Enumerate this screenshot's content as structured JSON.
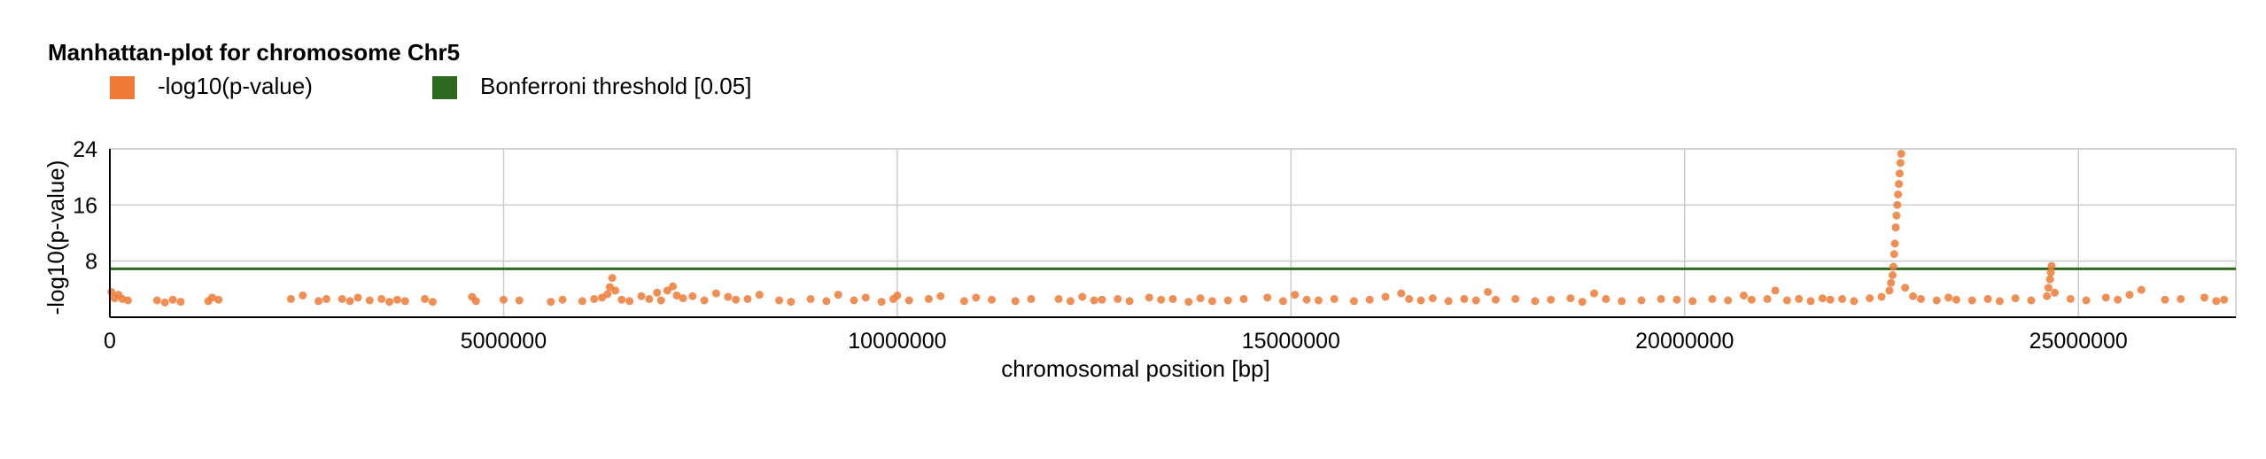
{
  "chart_data": {
    "type": "scatter",
    "title": "Manhattan-plot for chromosome Chr5",
    "xlabel": "chromosomal position [bp]",
    "ylabel": "-log10(p-value)",
    "xlim": [
      0,
      27000000
    ],
    "ylim": [
      0,
      24
    ],
    "x_ticks": [
      0,
      5000000,
      10000000,
      15000000,
      20000000,
      25000000
    ],
    "x_tick_labels": [
      "0",
      "5000000",
      "10000000",
      "15000000",
      "20000000",
      "25000000"
    ],
    "y_ticks": [
      8,
      16,
      24
    ],
    "y_tick_labels": [
      "8",
      "16",
      "24"
    ],
    "grid": true,
    "legend_placement": "top-left",
    "series": [
      {
        "name": "-log10(p-value)",
        "color": "#ef7a35",
        "points": [
          [
            20000,
            3.6
          ],
          [
            60000,
            2.7
          ],
          [
            110000,
            3.2
          ],
          [
            160000,
            2.6
          ],
          [
            230000,
            2.4
          ],
          [
            600000,
            2.4
          ],
          [
            700000,
            2.1
          ],
          [
            800000,
            2.5
          ],
          [
            900000,
            2.2
          ],
          [
            1250000,
            2.3
          ],
          [
            1300000,
            2.8
          ],
          [
            1380000,
            2.5
          ],
          [
            2300000,
            2.6
          ],
          [
            2450000,
            3.1
          ],
          [
            2650000,
            2.3
          ],
          [
            2750000,
            2.6
          ],
          [
            2950000,
            2.6
          ],
          [
            3050000,
            2.3
          ],
          [
            3150000,
            2.8
          ],
          [
            3300000,
            2.4
          ],
          [
            3450000,
            2.6
          ],
          [
            3550000,
            2.2
          ],
          [
            3650000,
            2.5
          ],
          [
            3750000,
            2.3
          ],
          [
            4000000,
            2.6
          ],
          [
            4100000,
            2.2
          ],
          [
            4600000,
            2.9
          ],
          [
            4650000,
            2.3
          ],
          [
            5000000,
            2.5
          ],
          [
            5200000,
            2.4
          ],
          [
            5600000,
            2.2
          ],
          [
            5750000,
            2.5
          ],
          [
            6000000,
            2.3
          ],
          [
            6150000,
            2.6
          ],
          [
            6250000,
            2.8
          ],
          [
            6320000,
            3.3
          ],
          [
            6350000,
            4.3
          ],
          [
            6380000,
            5.6
          ],
          [
            6420000,
            3.8
          ],
          [
            6500000,
            2.5
          ],
          [
            6600000,
            2.3
          ],
          [
            6750000,
            3.0
          ],
          [
            6850000,
            2.6
          ],
          [
            6950000,
            3.5
          ],
          [
            7000000,
            2.4
          ],
          [
            7080000,
            3.8
          ],
          [
            7150000,
            4.4
          ],
          [
            7200000,
            3.1
          ],
          [
            7280000,
            2.7
          ],
          [
            7400000,
            3.0
          ],
          [
            7550000,
            2.4
          ],
          [
            7700000,
            3.4
          ],
          [
            7850000,
            2.9
          ],
          [
            7950000,
            2.5
          ],
          [
            8100000,
            2.6
          ],
          [
            8250000,
            3.2
          ],
          [
            8500000,
            2.4
          ],
          [
            8650000,
            2.2
          ],
          [
            8900000,
            2.6
          ],
          [
            9100000,
            2.3
          ],
          [
            9250000,
            3.2
          ],
          [
            9450000,
            2.4
          ],
          [
            9600000,
            2.8
          ],
          [
            9800000,
            2.2
          ],
          [
            9950000,
            2.6
          ],
          [
            10000000,
            3.1
          ],
          [
            10150000,
            2.4
          ],
          [
            10400000,
            2.6
          ],
          [
            10550000,
            3.0
          ],
          [
            10850000,
            2.3
          ],
          [
            11000000,
            2.8
          ],
          [
            11200000,
            2.5
          ],
          [
            11500000,
            2.3
          ],
          [
            11700000,
            2.6
          ],
          [
            12050000,
            2.6
          ],
          [
            12200000,
            2.3
          ],
          [
            12350000,
            2.9
          ],
          [
            12500000,
            2.4
          ],
          [
            12600000,
            2.5
          ],
          [
            12800000,
            2.6
          ],
          [
            12950000,
            2.3
          ],
          [
            13200000,
            2.8
          ],
          [
            13350000,
            2.5
          ],
          [
            13500000,
            2.6
          ],
          [
            13700000,
            2.2
          ],
          [
            13850000,
            2.7
          ],
          [
            14000000,
            2.3
          ],
          [
            14200000,
            2.4
          ],
          [
            14400000,
            2.6
          ],
          [
            14700000,
            2.8
          ],
          [
            14900000,
            2.3
          ],
          [
            15050000,
            3.2
          ],
          [
            15200000,
            2.5
          ],
          [
            15350000,
            2.4
          ],
          [
            15550000,
            2.6
          ],
          [
            15800000,
            2.3
          ],
          [
            16000000,
            2.5
          ],
          [
            16200000,
            2.9
          ],
          [
            16400000,
            3.4
          ],
          [
            16500000,
            2.6
          ],
          [
            16650000,
            2.4
          ],
          [
            16800000,
            2.7
          ],
          [
            17000000,
            2.3
          ],
          [
            17200000,
            2.6
          ],
          [
            17350000,
            2.4
          ],
          [
            17500000,
            3.6
          ],
          [
            17600000,
            2.5
          ],
          [
            17850000,
            2.6
          ],
          [
            18100000,
            2.3
          ],
          [
            18300000,
            2.5
          ],
          [
            18550000,
            2.7
          ],
          [
            18700000,
            2.2
          ],
          [
            18850000,
            3.4
          ],
          [
            19000000,
            2.6
          ],
          [
            19200000,
            2.3
          ],
          [
            19450000,
            2.4
          ],
          [
            19700000,
            2.6
          ],
          [
            19900000,
            2.5
          ],
          [
            20100000,
            2.3
          ],
          [
            20350000,
            2.6
          ],
          [
            20550000,
            2.4
          ],
          [
            20750000,
            3.1
          ],
          [
            20850000,
            2.5
          ],
          [
            21050000,
            2.6
          ],
          [
            21150000,
            3.8
          ],
          [
            21300000,
            2.4
          ],
          [
            21450000,
            2.6
          ],
          [
            21600000,
            2.3
          ],
          [
            21750000,
            2.7
          ],
          [
            21850000,
            2.5
          ],
          [
            22000000,
            2.6
          ],
          [
            22150000,
            2.3
          ],
          [
            22350000,
            2.7
          ],
          [
            22500000,
            2.9
          ],
          [
            22600000,
            3.8
          ],
          [
            22620000,
            4.9
          ],
          [
            22640000,
            6.0
          ],
          [
            22650000,
            7.2
          ],
          [
            22660000,
            9.0
          ],
          [
            22670000,
            10.5
          ],
          [
            22680000,
            12.8
          ],
          [
            22690000,
            14.5
          ],
          [
            22700000,
            16.0
          ],
          [
            22710000,
            17.5
          ],
          [
            22720000,
            19.0
          ],
          [
            22730000,
            20.5
          ],
          [
            22740000,
            22.0
          ],
          [
            22750000,
            23.3
          ],
          [
            22800000,
            4.2
          ],
          [
            22900000,
            3.0
          ],
          [
            23000000,
            2.6
          ],
          [
            23200000,
            2.4
          ],
          [
            23350000,
            2.8
          ],
          [
            23450000,
            2.5
          ],
          [
            23650000,
            2.4
          ],
          [
            23850000,
            2.6
          ],
          [
            24000000,
            2.3
          ],
          [
            24200000,
            2.7
          ],
          [
            24400000,
            2.4
          ],
          [
            24600000,
            3.0
          ],
          [
            24620000,
            4.2
          ],
          [
            24640000,
            5.4
          ],
          [
            24650000,
            6.4
          ],
          [
            24660000,
            7.3
          ],
          [
            24700000,
            3.5
          ],
          [
            24900000,
            2.6
          ],
          [
            25100000,
            2.4
          ],
          [
            25350000,
            2.8
          ],
          [
            25500000,
            2.5
          ],
          [
            25650000,
            3.2
          ],
          [
            25800000,
            3.9
          ],
          [
            26100000,
            2.5
          ],
          [
            26300000,
            2.6
          ],
          [
            26600000,
            2.8
          ],
          [
            26750000,
            2.3
          ],
          [
            26850000,
            2.5
          ]
        ]
      },
      {
        "name": "Bonferroni threshold [0.05]",
        "color": "#2d6a1f",
        "type": "hline",
        "y": 6.9
      }
    ]
  }
}
